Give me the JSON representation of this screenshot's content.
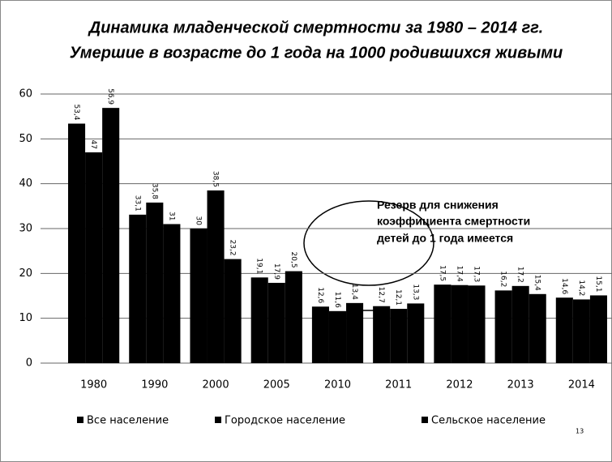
{
  "chart_data": {
    "type": "bar",
    "title": "Динамика младенческой смертности за 1980 – 2014 гг.",
    "subtitle": "Умершие в возрасте до 1 года на 1000 родившихся живыми",
    "categories": [
      "1980",
      "1990",
      "2000",
      "2005",
      "2010",
      "2011",
      "2012",
      "2013",
      "2014"
    ],
    "series": [
      {
        "name": "Все население",
        "color": "#000000",
        "values": [
          53.4,
          33.1,
          30,
          19.1,
          12.6,
          12.7,
          17.5,
          16.2,
          14.6
        ],
        "value_labels": [
          "53,4",
          "33,1",
          "30",
          "19,1",
          "12,6",
          "12,7",
          "17,5",
          "16,2",
          "14,6"
        ]
      },
      {
        "name": "Городское население",
        "color": "#000000",
        "values": [
          47,
          35.8,
          38.5,
          17.9,
          11.6,
          12.1,
          17.4,
          17.2,
          14.2
        ],
        "value_labels": [
          "47",
          "35,8",
          "38,5",
          "17,9",
          "11,6",
          "12,1",
          "17,4",
          "17,2",
          "14,2"
        ]
      },
      {
        "name": "Сельское население",
        "color": "#000000",
        "values": [
          56.9,
          31,
          23.2,
          20.5,
          13.4,
          13.3,
          17.3,
          15.4,
          15.1
        ],
        "value_labels": [
          "56,9",
          "31",
          "23,2",
          "20,5",
          "13,4",
          "13,3",
          "17,3",
          "15,4",
          "15,1"
        ]
      }
    ],
    "ylim": [
      0,
      60
    ],
    "yticks": [
      0,
      10,
      20,
      30,
      40,
      50,
      60
    ],
    "grid": true,
    "legend": "bottom",
    "annotation": [
      "Резерв для снижения",
      "коэффициента смертности",
      "детей до 1 года имеется"
    ],
    "page_number": "13"
  }
}
